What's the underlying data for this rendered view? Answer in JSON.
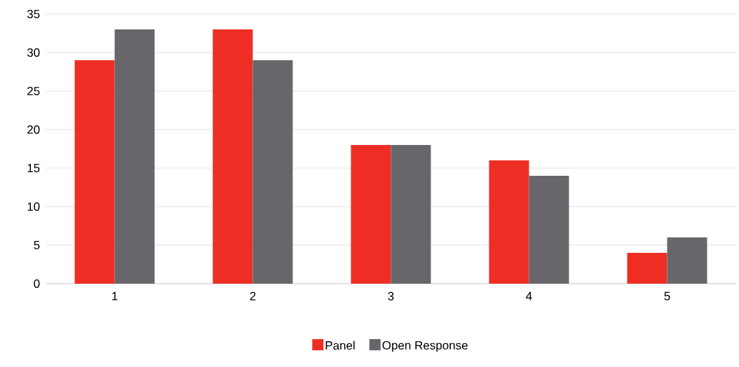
{
  "chart_data": {
    "type": "bar",
    "categories": [
      "1",
      "2",
      "3",
      "4",
      "5"
    ],
    "series": [
      {
        "name": "Panel",
        "color": "#ee2e24",
        "values": [
          29,
          33,
          18,
          16,
          4
        ]
      },
      {
        "name": "Open Response",
        "color": "#67676b",
        "values": [
          33,
          29,
          18,
          14,
          6
        ]
      }
    ],
    "ylim": [
      0,
      35
    ],
    "yticks": [
      0,
      5,
      10,
      15,
      20,
      25,
      30,
      35
    ],
    "grid": "y",
    "legend": "bottom"
  }
}
